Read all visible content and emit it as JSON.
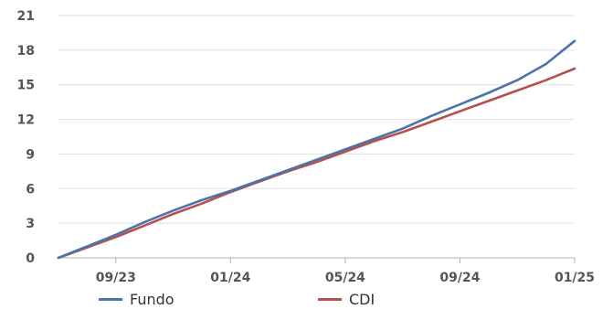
{
  "chart_data": {
    "type": "line",
    "title": "",
    "xlabel": "",
    "ylabel": "",
    "x_start": "2023-07",
    "x_end": "2025-01",
    "x_ticks": [
      "09/23",
      "01/24",
      "05/24",
      "09/24",
      "01/25"
    ],
    "ylim": [
      0,
      21
    ],
    "y_ticks": [
      0,
      3,
      6,
      9,
      12,
      15,
      18,
      21
    ],
    "grid": "horizontal",
    "legend_position": "bottom",
    "x": [
      "07/23",
      "08/23",
      "09/23",
      "10/23",
      "11/23",
      "12/23",
      "01/24",
      "02/24",
      "03/24",
      "04/24",
      "05/24",
      "06/24",
      "07/24",
      "08/24",
      "09/24",
      "10/24",
      "11/24",
      "12/24",
      "01/25"
    ],
    "series": [
      {
        "name": "Fundo",
        "color": "#4a74aa",
        "values": [
          0.0,
          1.0,
          2.0,
          3.1,
          4.1,
          5.0,
          5.8,
          6.7,
          7.6,
          8.5,
          9.4,
          10.3,
          11.2,
          12.3,
          13.3,
          14.3,
          15.4,
          16.8,
          18.8
        ]
      },
      {
        "name": "CDI",
        "color": "#b5504c",
        "values": [
          0.0,
          0.9,
          1.8,
          2.8,
          3.8,
          4.7,
          5.7,
          6.6,
          7.5,
          8.3,
          9.2,
          10.1,
          10.9,
          11.8,
          12.7,
          13.6,
          14.5,
          15.4,
          16.4
        ]
      }
    ]
  }
}
